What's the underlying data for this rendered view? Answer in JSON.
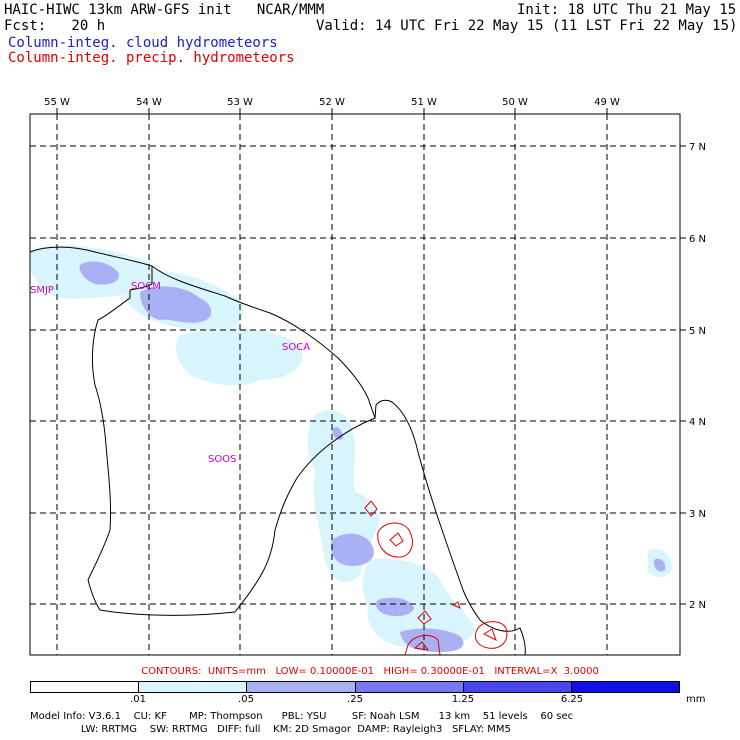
{
  "header": {
    "model": "HAIC-HIWC 13km ARW-GFS init   NCAR/MMM",
    "init": "Init: 18 UTC Thu 21 May 15",
    "fcst": "Fcst:   20 h",
    "valid": "Valid: 14 UTC Fri 22 May 15 (11 LST Fri 22 May 15)",
    "field1": "Column-integ. cloud hydrometeors",
    "field2": "Column-integ. precip. hydrometeors",
    "field1_color": "#2020c0",
    "field2_color": "#e00000"
  },
  "map": {
    "lon_labels": [
      "55 W",
      "54 W",
      "53 W",
      "52 W",
      "51 W",
      "50 W",
      "49 W"
    ],
    "lat_labels": [
      "7 N",
      "6 N",
      "5 N",
      "4 N",
      "3 N",
      "2 N"
    ],
    "stations": [
      "SMJP",
      "SOCM",
      "SOCA",
      "SOOS"
    ]
  },
  "legend": {
    "contours": "CONTOURS:  UNITS=mm   LOW= 0.10000E-01   HIGH= 0.30000E-01   INTERVAL=X  3.0000",
    "colors": [
      "#ffffff",
      "#d8f4fc",
      "#aab0f4",
      "#7878f0",
      "#4848ec",
      "#1010e4"
    ],
    "levels": [
      ".01",
      ".05",
      ".25",
      "1.25",
      "6.25"
    ],
    "units": "mm"
  },
  "model_info": {
    "line1": "Model Info: V3.6.1    CU: KF       MP: Thompson      PBL: YSU        SF: Noah LSM      13 km    51 levels    60 sec",
    "line2": "                LW: RRTMG    SW: RRTMG   DIFF: full    KM: 2D Smagor  DAMP: Rayleigh3   SFLAY: MM5"
  }
}
